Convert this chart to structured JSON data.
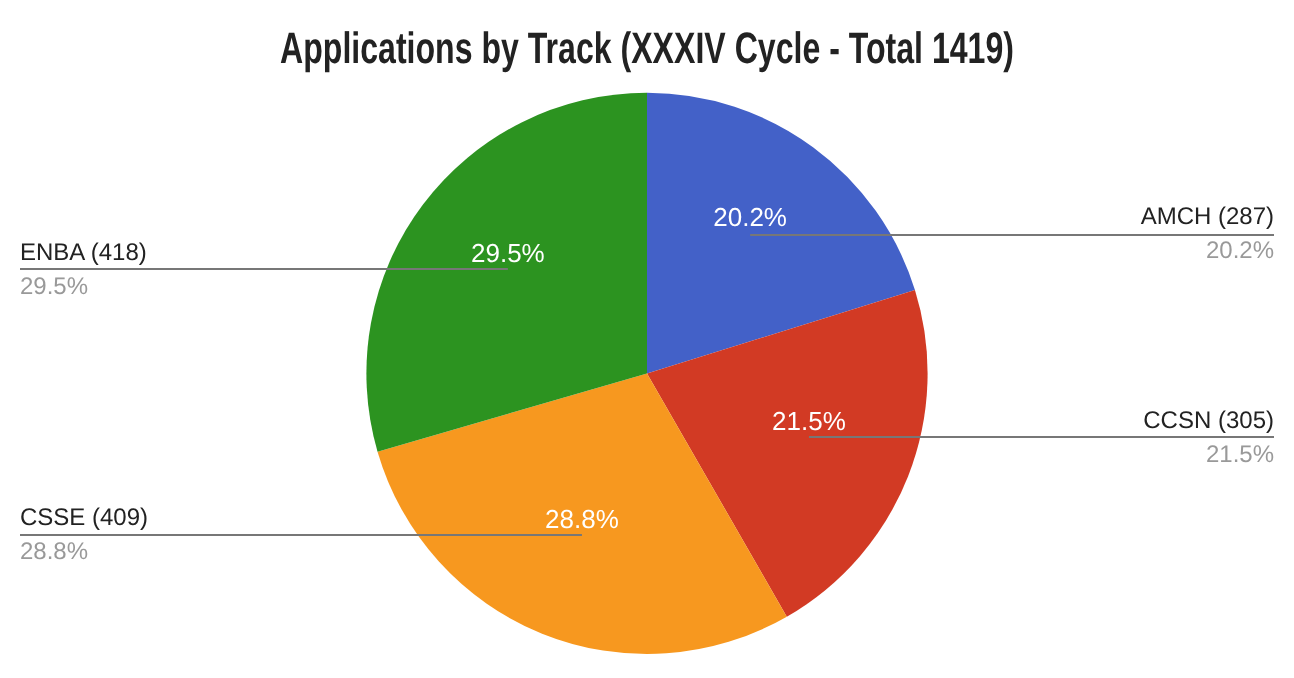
{
  "chart_data": {
    "type": "pie",
    "title": "Applications by Track (XXXIV Cycle - Total 1419)",
    "categories": [
      "AMCH (287)",
      "CCSN (305)",
      "CSSE (409)",
      "ENBA (418)"
    ],
    "values": [
      20.2,
      21.5,
      28.8,
      29.5
    ],
    "colors": [
      "#4361c8",
      "#d23a24",
      "#f7981f",
      "#2c9320"
    ],
    "value_labels": [
      "20.2%",
      "21.5%",
      "28.8%",
      "29.5%"
    ]
  }
}
